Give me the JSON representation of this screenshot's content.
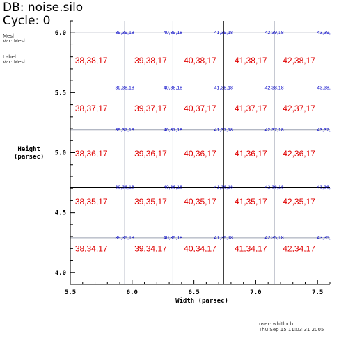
{
  "header": {
    "db": "DB: noise.silo",
    "cycle": "Cycle: 0"
  },
  "legend": [
    {
      "title": "Mesh",
      "var": "Var: Mesh"
    },
    {
      "title": "Label",
      "var": "Var: Mesh"
    }
  ],
  "axes": {
    "xlabel": "Width (parsec)",
    "ylabel": [
      "Height",
      "(parsec)"
    ],
    "xticks": [
      "5.5",
      "6.0",
      "6.5",
      "7.0",
      "7.5"
    ],
    "yticks": [
      "4.0",
      "4.5",
      "5.0",
      "5.5",
      "6.0"
    ]
  },
  "zone_labels": [
    [
      "38,38,17",
      "39,38,17",
      "40,38,17",
      "41,38,17",
      "42,38,17"
    ],
    [
      "38,37,17",
      "39,37,17",
      "40,37,17",
      "41,37,17",
      "42,37,17"
    ],
    [
      "38,36,17",
      "39,36,17",
      "40,36,17",
      "41,36,17",
      "42,36,17"
    ],
    [
      "38,35,17",
      "39,35,17",
      "40,35,17",
      "41,35,17",
      "42,35,17"
    ],
    [
      "38,34,17",
      "39,34,17",
      "40,34,17",
      "41,34,17",
      "42,34,17"
    ]
  ],
  "node_labels": [
    [
      "39,39,18",
      "40,39,18",
      "41,39,18",
      "42,39,18",
      "43,39,"
    ],
    [
      "39,38,18",
      "40,38,18",
      "41,38,18",
      "42,38,18",
      "43,38,"
    ],
    [
      "39,37,18",
      "40,37,18",
      "41,37,18",
      "42,37,18",
      "43,37,"
    ],
    [
      "39,36,18",
      "40,36,18",
      "41,36,18",
      "42,36,18",
      "43,36,"
    ],
    [
      "39,35,18",
      "40,35,18",
      "41,35,18",
      "42,35,18",
      "43,35,"
    ]
  ],
  "footer": {
    "user": "user: whitlocb",
    "date": "Thu Sep 15 11:03:31 2005"
  },
  "colors": {
    "zone": "#e00000",
    "node": "#0000c8",
    "grid_fine": "#9aa0b0",
    "grid_coarse": "#000000"
  }
}
